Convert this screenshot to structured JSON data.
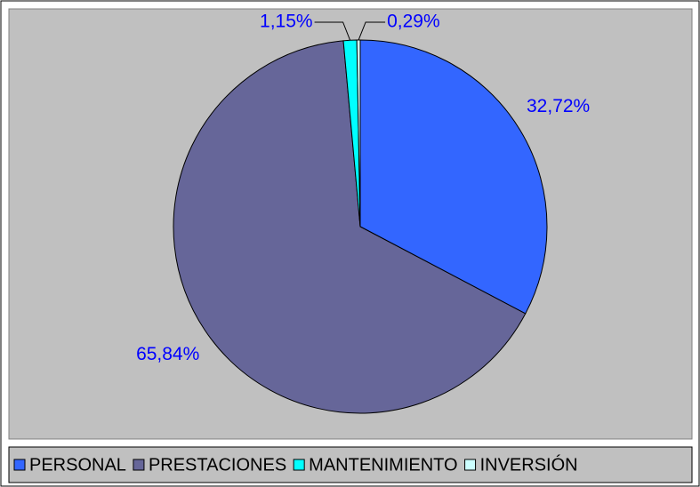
{
  "chart_data": {
    "type": "pie",
    "categories": [
      "PERSONAL",
      "PRESTACIONES",
      "MANTENIMIENTO",
      "INVERSIÓN"
    ],
    "values": [
      32.72,
      65.84,
      1.15,
      0.29
    ],
    "value_labels": [
      "32,72%",
      "65,84%",
      "1,15%",
      "0,29%"
    ],
    "colors": [
      "#3366ff",
      "#666699",
      "#00ffff",
      "#ccffff"
    ],
    "legend": "bottom"
  }
}
